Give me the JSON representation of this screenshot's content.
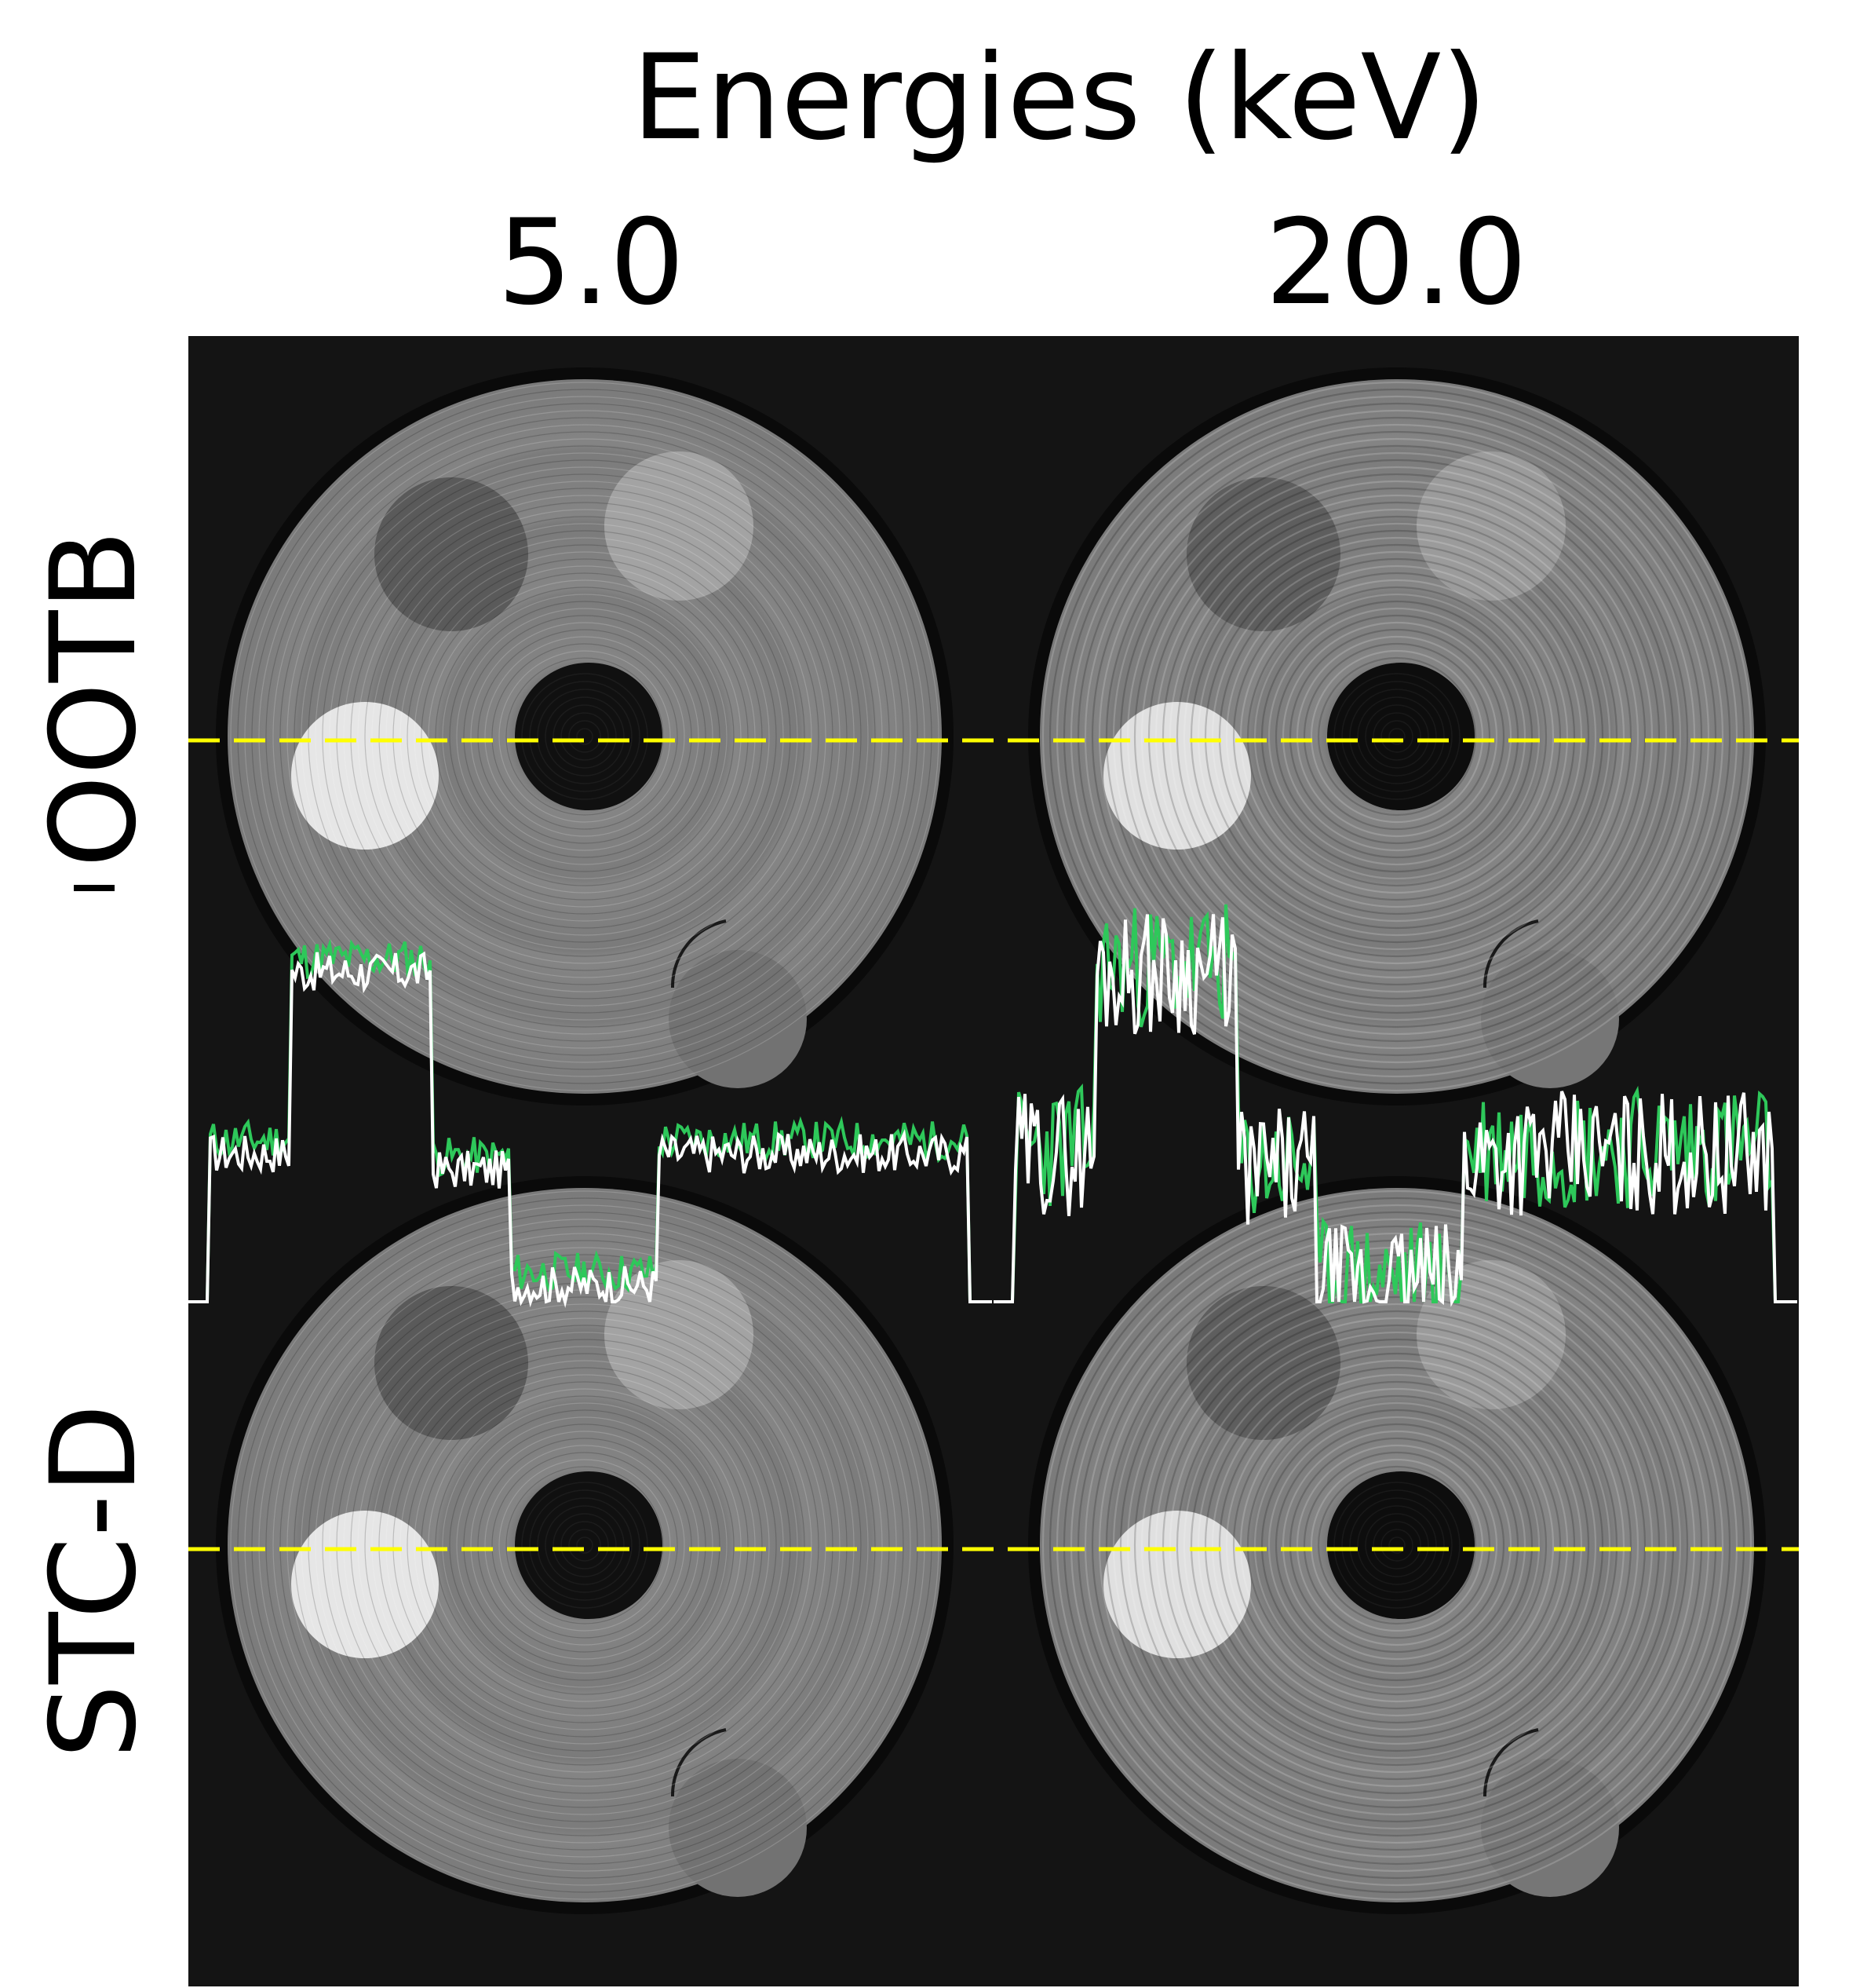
{
  "title": "Energies (keV)",
  "columns": [
    "5.0",
    "20.0"
  ],
  "rows": [
    {
      "label": "OOTB",
      "swatch_color": "#ffffff",
      "swatch_border": "#000000"
    },
    {
      "label": "STC-D",
      "swatch_color": "#2ec85a",
      "swatch_border": "#2ec85a"
    }
  ],
  "colors": {
    "background": "#121212",
    "disk": "#7e7e7e",
    "profile_line": "#ffff00",
    "ootb_profile": "#ffffff",
    "stcd_profile": "#2ec85a"
  }
}
